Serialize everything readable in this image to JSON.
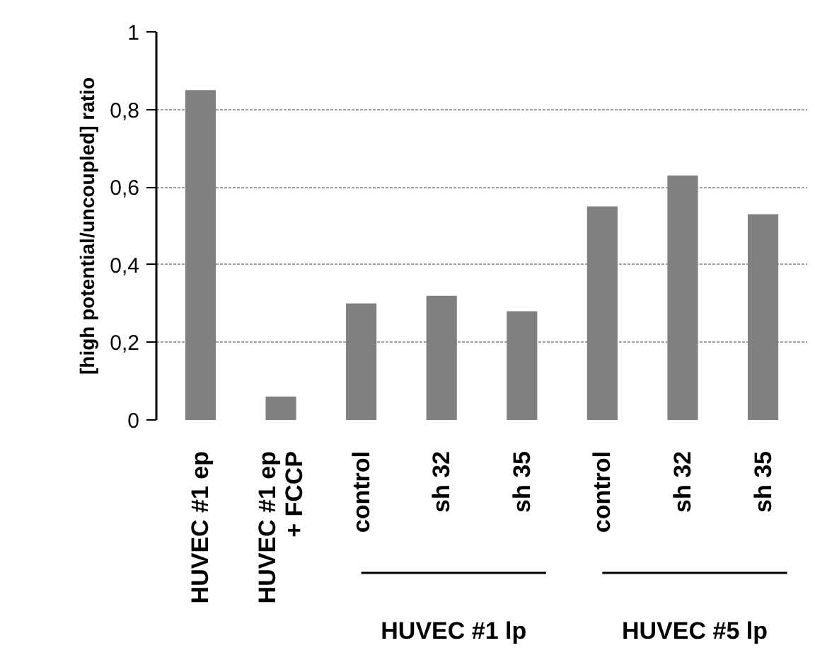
{
  "chart_data": {
    "type": "bar",
    "ylabel": "[high potential/uncoupled] ratio",
    "categories": [
      "HUVEC #1 ep",
      "HUVEC #1 ep\n+ FCCP",
      "control",
      "sh 32",
      "sh 35",
      "control",
      "sh 32",
      "sh 35"
    ],
    "values": [
      0.85,
      0.06,
      0.3,
      0.32,
      0.28,
      0.55,
      0.63,
      0.53
    ],
    "color": "#808080",
    "ylim": [
      0,
      1
    ],
    "yticks": [
      0,
      {
        "value": 0.2,
        "label": "0,2"
      },
      {
        "value": 0.4,
        "label": "0,4"
      },
      {
        "value": 0.6,
        "label": "0,6"
      },
      {
        "value": 0.8,
        "label": "0,8"
      },
      1
    ],
    "grid": "y",
    "annotations": [
      "HUVEC #1 lp",
      "HUVEC #5 lp"
    ]
  }
}
